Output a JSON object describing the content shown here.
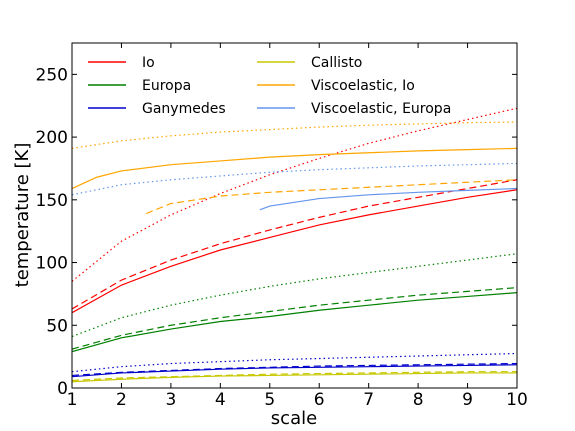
{
  "chart_data": {
    "type": "line",
    "xlabel": "scale",
    "ylabel": "temperature [K]",
    "xlim": [
      1,
      10
    ],
    "ylim": [
      0,
      275
    ],
    "xticks": [
      1,
      2,
      3,
      4,
      5,
      6,
      7,
      8,
      9,
      10
    ],
    "yticks": [
      0,
      50,
      100,
      150,
      200,
      250
    ],
    "grid": false,
    "legend_position": "top-left, two columns",
    "legend": [
      {
        "label": "Io",
        "color": "#ff0000"
      },
      {
        "label": "Europa",
        "color": "#008000"
      },
      {
        "label": "Ganymedes",
        "color": "#0000cc"
      },
      {
        "label": "Callisto",
        "color": "#c8c800"
      },
      {
        "label": "Viscoelastic, Io",
        "color": "#ffa500"
      },
      {
        "label": "Viscoelastic, Europa",
        "color": "#6495ed"
      }
    ],
    "series": [
      {
        "name": "Io",
        "style": "solid",
        "color": "#ff0000",
        "x": [
          1,
          2,
          3,
          4,
          5,
          6,
          7,
          8,
          9,
          10
        ],
        "y": [
          60,
          82,
          97,
          110,
          120,
          130,
          138,
          145,
          152,
          158
        ]
      },
      {
        "name": "Io",
        "style": "dashed",
        "color": "#ff0000",
        "x": [
          1,
          2,
          3,
          4,
          5,
          6,
          7,
          8,
          9,
          10
        ],
        "y": [
          63,
          86,
          102,
          115,
          126,
          136,
          145,
          152,
          159,
          166
        ]
      },
      {
        "name": "Io",
        "style": "dotted",
        "color": "#ff0000",
        "x": [
          1,
          2,
          3,
          4,
          5,
          6,
          7,
          8,
          9,
          10
        ],
        "y": [
          85,
          117,
          138,
          155,
          170,
          183,
          195,
          205,
          214,
          223
        ]
      },
      {
        "name": "Europa",
        "style": "solid",
        "color": "#008000",
        "x": [
          1,
          2,
          3,
          4,
          5,
          6,
          7,
          8,
          9,
          10
        ],
        "y": [
          29,
          40,
          47,
          53,
          57,
          62,
          66,
          70,
          73,
          76
        ]
      },
      {
        "name": "Europa",
        "style": "dashed",
        "color": "#008000",
        "x": [
          1,
          2,
          3,
          4,
          5,
          6,
          7,
          8,
          9,
          10
        ],
        "y": [
          31,
          42,
          50,
          56,
          61,
          66,
          70,
          74,
          77,
          80
        ]
      },
      {
        "name": "Europa",
        "style": "dotted",
        "color": "#008000",
        "x": [
          1,
          2,
          3,
          4,
          5,
          6,
          7,
          8,
          9,
          10
        ],
        "y": [
          41,
          56,
          66,
          74,
          81,
          87,
          92,
          97,
          102,
          107
        ]
      },
      {
        "name": "Ganymedes",
        "style": "solid",
        "color": "#0000cc",
        "x": [
          1,
          2,
          3,
          4,
          5,
          6,
          7,
          8,
          9,
          10
        ],
        "y": [
          9,
          12,
          13.5,
          15,
          16,
          16.5,
          17,
          17.5,
          18,
          18.5
        ]
      },
      {
        "name": "Ganymedes",
        "style": "dashed",
        "color": "#0000cc",
        "x": [
          1,
          2,
          3,
          4,
          5,
          6,
          7,
          8,
          9,
          10
        ],
        "y": [
          10,
          12.5,
          14,
          15.5,
          16.5,
          17.5,
          18,
          18.5,
          19,
          19.5
        ]
      },
      {
        "name": "Ganymedes",
        "style": "dotted",
        "color": "#0000cc",
        "x": [
          1,
          2,
          3,
          4,
          5,
          6,
          7,
          8,
          9,
          10
        ],
        "y": [
          13,
          17,
          19.5,
          21,
          22.5,
          23.5,
          24.5,
          25.5,
          26.5,
          27.5
        ]
      },
      {
        "name": "Callisto",
        "style": "solid",
        "color": "#c8c800",
        "x": [
          1,
          2,
          3,
          4,
          5,
          6,
          7,
          8,
          9,
          10
        ],
        "y": [
          5,
          7,
          8.5,
          9.5,
          10,
          10.5,
          11,
          11.5,
          12,
          12
        ]
      },
      {
        "name": "Callisto",
        "style": "dashed",
        "color": "#c8c800",
        "x": [
          1,
          2,
          3,
          4,
          5,
          6,
          7,
          8,
          9,
          10
        ],
        "y": [
          6,
          8,
          9,
          10,
          11,
          11.5,
          12,
          12.5,
          13,
          13
        ]
      },
      {
        "name": "Viscoelastic, Io",
        "style": "solid",
        "color": "#ffa500",
        "x": [
          1,
          1.5,
          2,
          3,
          4,
          5,
          6,
          7,
          8,
          9,
          10
        ],
        "y": [
          159,
          168,
          173,
          178,
          181,
          184,
          186,
          187.5,
          189,
          190,
          191
        ]
      },
      {
        "name": "Viscoelastic, Io",
        "style": "dashed",
        "color": "#ffa500",
        "x": [
          2.5,
          3,
          4,
          5,
          6,
          7,
          8,
          9,
          10
        ],
        "y": [
          139,
          147,
          153,
          156,
          158,
          160,
          162,
          164,
          166
        ]
      },
      {
        "name": "Viscoelastic, Io",
        "style": "dotted",
        "color": "#ffa500",
        "x": [
          1,
          2,
          3,
          4,
          5,
          6,
          7,
          8,
          9,
          10
        ],
        "y": [
          191,
          197,
          201,
          204,
          206,
          208,
          209.5,
          210.5,
          211.5,
          212
        ]
      },
      {
        "name": "Viscoelastic, Europa",
        "style": "solid",
        "color": "#6495ed",
        "x": [
          4.8,
          5,
          6,
          7,
          8,
          9,
          10
        ],
        "y": [
          142,
          145,
          151,
          154,
          156,
          157.5,
          159
        ]
      },
      {
        "name": "Viscoelastic, Europa",
        "style": "dotted",
        "color": "#6495ed",
        "x": [
          1,
          2,
          3,
          4,
          5,
          6,
          7,
          8,
          9,
          10
        ],
        "y": [
          154,
          162,
          166,
          169,
          172,
          174,
          175.5,
          177,
          178,
          179
        ]
      }
    ]
  }
}
